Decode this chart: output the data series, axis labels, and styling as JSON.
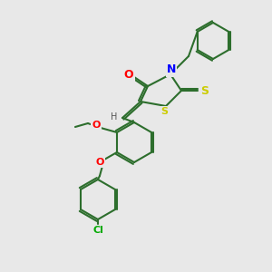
{
  "background_color": "#e8e8e8",
  "bond_color": "#2d6e2d",
  "bond_width": 1.5,
  "atom_colors": {
    "O": "#FF0000",
    "N": "#0000FF",
    "S": "#CCCC00",
    "Cl": "#00AA00",
    "C": "#000000",
    "H": "#555555"
  },
  "figsize": [
    3.0,
    3.0
  ],
  "dpi": 100
}
